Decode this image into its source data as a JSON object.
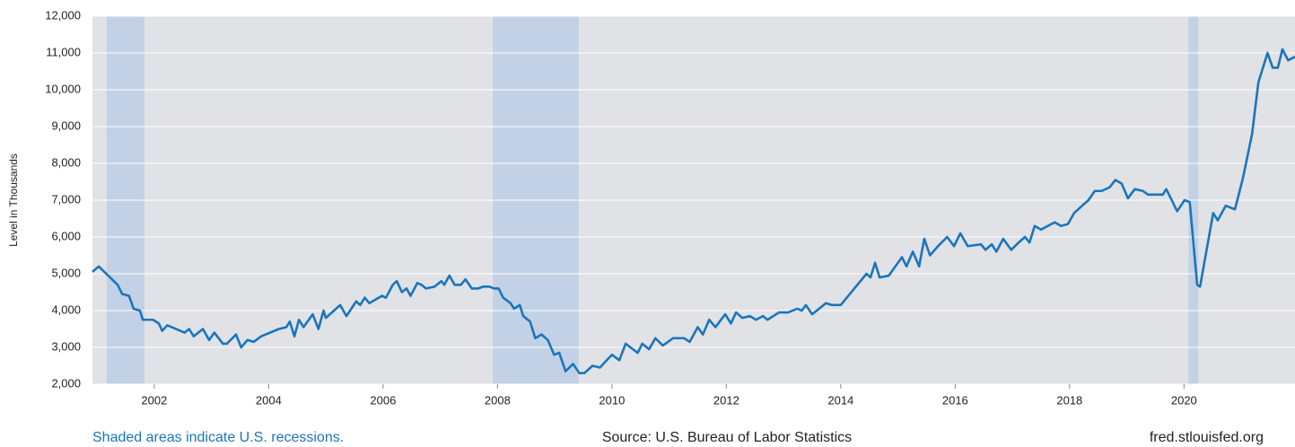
{
  "chart_data": {
    "type": "line",
    "y_label": "Level in Thousands",
    "note": "Shaded areas indicate U.S. recessions.",
    "source": "Source: U.S. Bureau of Labor Statistics",
    "site": "fred.stlouisfed.org",
    "color": "#1b75bb",
    "recession_color": "#c2d1e5",
    "background": "#e1e2e6",
    "grid": true,
    "xlim": [
      2000.92,
      2021.94
    ],
    "xticks": [
      2002,
      2004,
      2006,
      2008,
      2010,
      2012,
      2014,
      2016,
      2018,
      2020
    ],
    "ylim": [
      2000,
      12000
    ],
    "yticks": [
      {
        "value": 2000,
        "label": "2,000"
      },
      {
        "value": 3000,
        "label": "3,000"
      },
      {
        "value": 4000,
        "label": "4,000"
      },
      {
        "value": 5000,
        "label": "5,000"
      },
      {
        "value": 6000,
        "label": "6,000"
      },
      {
        "value": 7000,
        "label": "7,000"
      },
      {
        "value": 8000,
        "label": "8,000"
      },
      {
        "value": 9000,
        "label": "9,000"
      },
      {
        "value": 10000,
        "label": "10,000"
      },
      {
        "value": 11000,
        "label": "11,000"
      },
      {
        "value": 12000,
        "label": "12,000"
      }
    ],
    "recessions": [
      [
        2001.17,
        2001.83
      ],
      [
        2007.92,
        2009.42
      ],
      [
        2020.08,
        2020.25
      ]
    ],
    "x": [
      2000.92,
      2001.03,
      2001.36,
      2001.44,
      2001.56,
      2001.64,
      2001.75,
      2001.8,
      2001.98,
      2002.08,
      2002.14,
      2002.23,
      2002.53,
      2002.61,
      2002.69,
      2002.85,
      2002.96,
      2003.05,
      2003.2,
      2003.27,
      2003.43,
      2003.52,
      2003.63,
      2003.74,
      2003.87,
      2004.18,
      2004.31,
      2004.37,
      2004.45,
      2004.53,
      2004.61,
      2004.77,
      2004.87,
      2004.96,
      2005.0,
      2005.25,
      2005.36,
      2005.53,
      2005.6,
      2005.68,
      2005.76,
      2005.98,
      2006.05,
      2006.17,
      2006.24,
      2006.33,
      2006.41,
      2006.48,
      2006.6,
      2006.67,
      2006.75,
      2006.9,
      2007.02,
      2007.07,
      2007.16,
      2007.25,
      2007.36,
      2007.44,
      2007.55,
      2007.66,
      2007.75,
      2007.86,
      2007.94,
      2008.02,
      2008.1,
      2008.23,
      2008.29,
      2008.39,
      2008.45,
      2008.57,
      2008.66,
      2008.77,
      2008.88,
      2008.99,
      2009.08,
      2009.19,
      2009.32,
      2009.43,
      2009.52,
      2009.66,
      2009.79,
      2010.0,
      2010.13,
      2010.24,
      2010.45,
      2010.53,
      2010.65,
      2010.76,
      2010.89,
      2011.07,
      2011.26,
      2011.36,
      2011.5,
      2011.59,
      2011.7,
      2011.81,
      2011.98,
      2012.08,
      2012.17,
      2012.28,
      2012.41,
      2012.52,
      2012.64,
      2012.72,
      2012.92,
      2013.08,
      2013.24,
      2013.32,
      2013.39,
      2013.5,
      2013.74,
      2013.85,
      2014.0,
      2014.45,
      2014.52,
      2014.6,
      2014.68,
      2014.84,
      2015.07,
      2015.15,
      2015.26,
      2015.37,
      2015.46,
      2015.56,
      2015.7,
      2015.86,
      2015.98,
      2016.09,
      2016.22,
      2016.45,
      2016.53,
      2016.64,
      2016.72,
      2016.84,
      2016.98,
      2017.11,
      2017.22,
      2017.3,
      2017.39,
      2017.5,
      2017.74,
      2017.85,
      2017.97,
      2018.08,
      2018.22,
      2018.33,
      2018.44,
      2018.56,
      2018.7,
      2018.8,
      2018.91,
      2019.02,
      2019.14,
      2019.28,
      2019.37,
      2019.63,
      2019.69,
      2019.88,
      2020.01,
      2020.1,
      2020.23,
      2020.28,
      2020.51,
      2020.59,
      2020.73,
      2020.89,
      2021.03,
      2021.19,
      2021.3,
      2021.46,
      2021.55,
      2021.64,
      2021.72,
      2021.82,
      2021.94
    ],
    "values": [
      5050,
      5200,
      4700,
      4450,
      4400,
      4050,
      4000,
      3750,
      3750,
      3650,
      3450,
      3600,
      3400,
      3500,
      3300,
      3500,
      3200,
      3400,
      3100,
      3100,
      3350,
      3000,
      3200,
      3150,
      3300,
      3500,
      3550,
      3700,
      3300,
      3750,
      3550,
      3900,
      3500,
      4000,
      3800,
      4150,
      3850,
      4250,
      4150,
      4350,
      4200,
      4400,
      4350,
      4700,
      4800,
      4500,
      4600,
      4400,
      4750,
      4700,
      4600,
      4650,
      4800,
      4700,
      4950,
      4700,
      4700,
      4850,
      4600,
      4600,
      4650,
      4650,
      4600,
      4600,
      4350,
      4200,
      4050,
      4150,
      3850,
      3700,
      3250,
      3350,
      3200,
      2800,
      2850,
      2350,
      2550,
      2300,
      2300,
      2500,
      2450,
      2800,
      2650,
      3100,
      2850,
      3100,
      2950,
      3250,
      3050,
      3250,
      3250,
      3150,
      3550,
      3350,
      3750,
      3550,
      3900,
      3650,
      3950,
      3800,
      3850,
      3750,
      3850,
      3750,
      3950,
      3950,
      4050,
      4000,
      4150,
      3900,
      4200,
      4150,
      4150,
      5000,
      4900,
      5300,
      4900,
      4950,
      5450,
      5200,
      5600,
      5200,
      5950,
      5500,
      5750,
      6000,
      5750,
      6100,
      5750,
      5800,
      5650,
      5800,
      5600,
      5950,
      5650,
      5850,
      6000,
      5850,
      6300,
      6200,
      6400,
      6300,
      6350,
      6650,
      6850,
      7000,
      7250,
      7250,
      7350,
      7550,
      7450,
      7050,
      7300,
      7250,
      7150,
      7150,
      7300,
      6700,
      7000,
      6950,
      4700,
      4650,
      6650,
      6450,
      6850,
      6750,
      7600,
      8800,
      10200,
      11000,
      10600,
      10600,
      11100,
      10800,
      10900
    ]
  }
}
